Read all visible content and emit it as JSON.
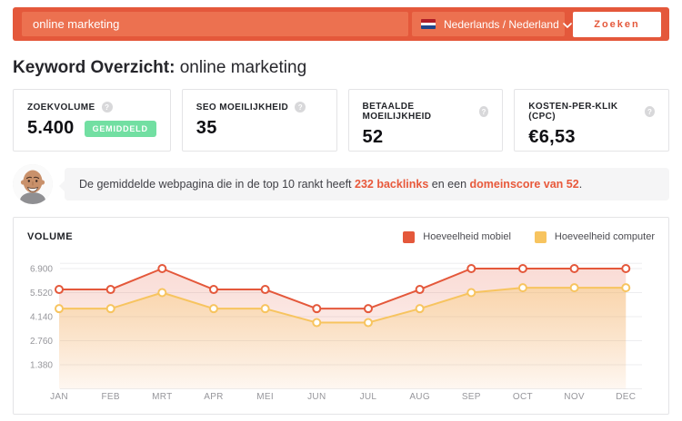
{
  "search_bar": {
    "query": "online marketing",
    "language": "Nederlands / Nederland",
    "submit_label": "Zoeken"
  },
  "header": {
    "title_bold": "Keyword Overzicht:",
    "title_keyword": "online marketing"
  },
  "metrics": {
    "help_glyph": "?",
    "cards": [
      {
        "label": "ZOEKVOLUME",
        "value": "5.400",
        "badge": "GEMIDDELD"
      },
      {
        "label": "SEO MOEILIJKHEID",
        "value": "35"
      },
      {
        "label": "BETAALDE MOEILIJKHEID",
        "value": "52"
      },
      {
        "label": "KOSTEN-PER-KLIK (CPC)",
        "value": "€6,53"
      }
    ]
  },
  "assistant": {
    "message_parts": [
      {
        "text": "De gemiddelde webpagina die in de top 10 rankt heeft "
      },
      {
        "text": "232 backlinks"
      },
      {
        "text": " en een "
      },
      {
        "text": "domeinscore van 52"
      },
      {
        "text": "."
      }
    ]
  },
  "chart": {
    "title": "VOLUME"
  },
  "chart_data": {
    "type": "area",
    "title": "VOLUME",
    "x": [
      "JAN",
      "FEB",
      "MRT",
      "APR",
      "MEI",
      "JUN",
      "JUL",
      "AUG",
      "SEP",
      "OCT",
      "NOV",
      "DEC"
    ],
    "series": [
      {
        "name": "Hoeveelheid mobiel",
        "color": "#E4583B",
        "values": [
          5700,
          5700,
          6900,
          5700,
          5700,
          4600,
          4600,
          5700,
          6900,
          6900,
          6900,
          6900
        ]
      },
      {
        "name": "Hoeveelheid computer",
        "color": "#F7C45F",
        "values": [
          4600,
          4600,
          5520,
          4600,
          4600,
          3800,
          3800,
          4600,
          5520,
          5800,
          5800,
          5800
        ]
      }
    ],
    "yticks": [
      {
        "value": 6900,
        "label": "6.900"
      },
      {
        "value": 5520,
        "label": "5.520"
      },
      {
        "value": 4140,
        "label": "4.140"
      },
      {
        "value": 2760,
        "label": "2.760"
      },
      {
        "value": 1380,
        "label": "1.380"
      }
    ],
    "ylim": [
      0,
      7200
    ],
    "grid": true,
    "legend_position": "top-right"
  },
  "colors": {
    "accent": "#E4583B",
    "accent_light": "#EC7150",
    "badge_green": "#72DFA2",
    "grid": "#EDEDEF",
    "axis_text": "#96969B"
  }
}
